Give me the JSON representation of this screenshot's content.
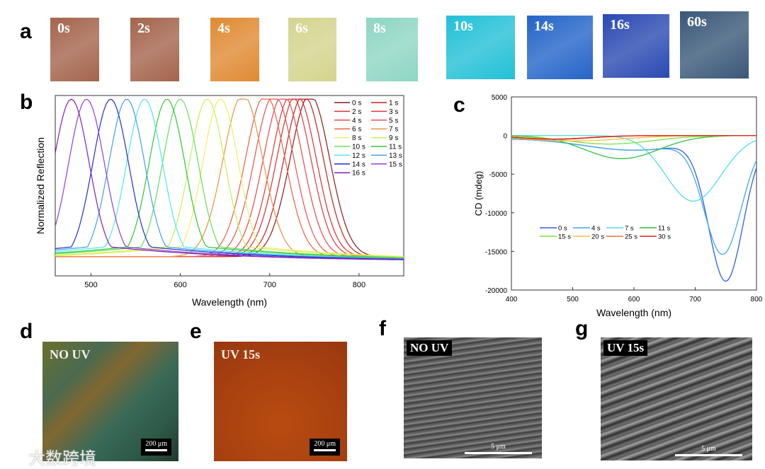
{
  "panels": {
    "a": "a",
    "b": "b",
    "c": "c",
    "d": "d",
    "e": "e",
    "f": "f",
    "g": "g"
  },
  "tiles": [
    {
      "label": "0s",
      "color": "#a4644c"
    },
    {
      "label": "2s",
      "color": "#a4644c"
    },
    {
      "label": "4s",
      "color": "#e08a32"
    },
    {
      "label": "6s",
      "color": "#d4d48e"
    },
    {
      "label": "8s",
      "color": "#8ed6c4"
    },
    {
      "label": "10s",
      "color": "#22c0d6"
    },
    {
      "label": "14s",
      "color": "#2464c8"
    },
    {
      "label": "16s",
      "color": "#2a4ab2"
    },
    {
      "label": "60s",
      "color": "#3a5878"
    }
  ],
  "micro": {
    "d_label": "NO UV",
    "e_label": "UV 15s",
    "scale": "200 μm"
  },
  "sem": {
    "f_label": "NO UV",
    "g_label": "UV 15s",
    "scale": "5 μm"
  },
  "watermark": "大数跨境",
  "chart_data": [
    {
      "type": "line",
      "panel": "b",
      "xlabel": "Wavelength (nm)",
      "ylabel": "Normalized Reflection",
      "xlim": [
        460,
        850
      ],
      "xticks": [
        500,
        600,
        700,
        800
      ],
      "series": [
        {
          "name": "0 s",
          "peak": 745,
          "color": "#8b1a1a"
        },
        {
          "name": "1 s",
          "peak": 738,
          "color": "#c81e1e"
        },
        {
          "name": "2 s",
          "peak": 730,
          "color": "#d83030"
        },
        {
          "name": "3 s",
          "peak": 724,
          "color": "#e03838"
        },
        {
          "name": "4 s",
          "peak": 715,
          "color": "#e84848"
        },
        {
          "name": "5 s",
          "peak": 705,
          "color": "#ec5050"
        },
        {
          "name": "6 s",
          "peak": 695,
          "color": "#ee6040"
        },
        {
          "name": "7 s",
          "peak": 670,
          "color": "#f09040"
        },
        {
          "name": "8 s",
          "peak": 645,
          "color": "#f0f060"
        },
        {
          "name": "9 s",
          "peak": 630,
          "color": "#c8f050"
        },
        {
          "name": "10 s",
          "peak": 600,
          "color": "#60e060"
        },
        {
          "name": "11 s",
          "peak": 585,
          "color": "#30c830"
        },
        {
          "name": "12 s",
          "peak": 560,
          "color": "#50e8f0"
        },
        {
          "name": "13 s",
          "peak": 540,
          "color": "#40a0e8"
        },
        {
          "name": "14 s",
          "peak": 522,
          "color": "#2030d0"
        },
        {
          "name": "15 s",
          "peak": 495,
          "color": "#9040d8"
        },
        {
          "name": "16 s",
          "peak": 478,
          "color": "#8020b0"
        }
      ]
    },
    {
      "type": "line",
      "panel": "c",
      "xlabel": "Wavelength (nm)",
      "ylabel": "CD (mdeg)",
      "xlim": [
        400,
        800
      ],
      "ylim": [
        -20000,
        5000
      ],
      "xticks": [
        400,
        500,
        600,
        700,
        800
      ],
      "yticks": [
        5000,
        0,
        -5000,
        -10000,
        -15000,
        -20000
      ],
      "series": [
        {
          "name": "0 s",
          "color": "#3060d8",
          "peak": 750,
          "min": -18200,
          "width": 28
        },
        {
          "name": "4 s",
          "color": "#40a8e8",
          "peak": 745,
          "min": -14700,
          "width": 30
        },
        {
          "name": "7 s",
          "color": "#50e0e0",
          "peak": 697,
          "min": -8500,
          "width": 45
        },
        {
          "name": "11 s",
          "color": "#30c040",
          "peak": 580,
          "min": -3000,
          "width": 60
        },
        {
          "name": "15 s",
          "color": "#80e040",
          "peak": 560,
          "min": -1100,
          "width": 70
        },
        {
          "name": "20 s",
          "color": "#f0c040",
          "peak": 500,
          "min": -700,
          "width": 80
        },
        {
          "name": "25 s",
          "color": "#f07030",
          "peak": 470,
          "min": -500,
          "width": 60
        },
        {
          "name": "30 s",
          "color": "#e02020",
          "peak": 470,
          "min": -450,
          "width": 55
        }
      ]
    }
  ]
}
